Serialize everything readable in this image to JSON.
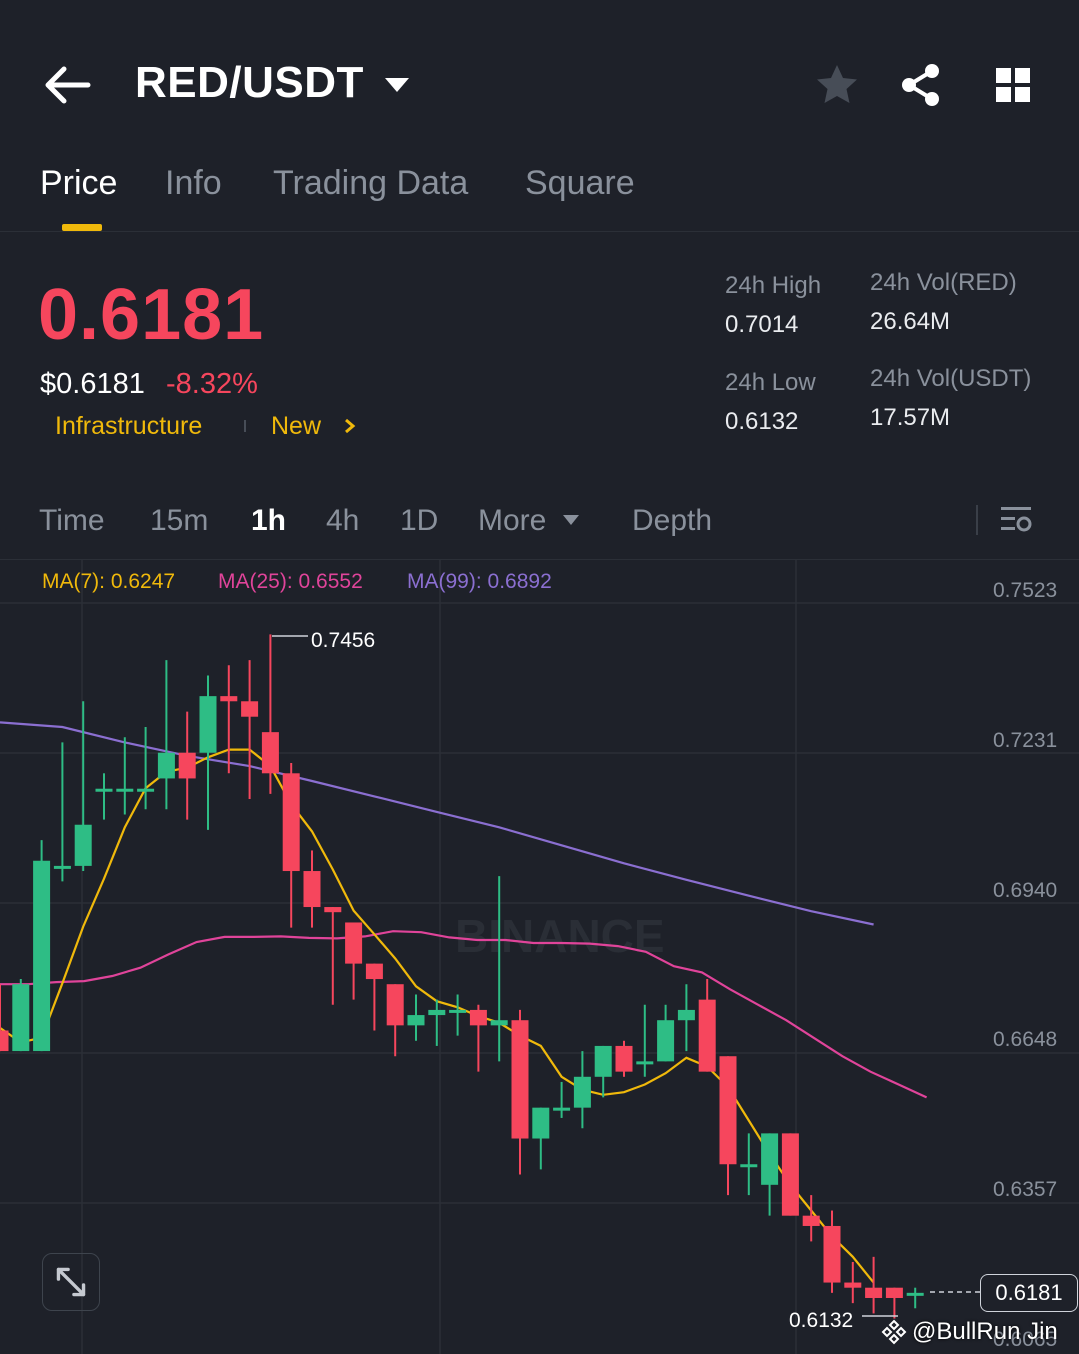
{
  "header": {
    "pair": "RED/USDT",
    "icons": [
      "back-arrow-icon",
      "dropdown-caret-icon",
      "star-icon",
      "share-icon",
      "grid-menu-icon"
    ]
  },
  "tabs": [
    {
      "label": "Price",
      "active": true
    },
    {
      "label": "Info",
      "active": false
    },
    {
      "label": "Trading Data",
      "active": false
    },
    {
      "label": "Square",
      "active": false
    }
  ],
  "price": {
    "last": "0.6181",
    "usd": "$0.6181",
    "change_pct": "-8.32%",
    "tags": [
      "Infrastructure",
      "New"
    ]
  },
  "stats": {
    "high_label": "24h High",
    "high": "0.7014",
    "low_label": "24h Low",
    "low": "0.6132",
    "vol_base_label": "24h Vol(RED)",
    "vol_base": "26.64M",
    "vol_quote_label": "24h Vol(USDT)",
    "vol_quote": "17.57M"
  },
  "intervals": {
    "items": [
      "Time",
      "15m",
      "1h",
      "4h",
      "1D",
      "More",
      "Depth"
    ],
    "active": "1h"
  },
  "ma_legend": {
    "ma7": "MA(7): 0.6247",
    "ma25": "MA(25): 0.6552",
    "ma99": "MA(99): 0.6892"
  },
  "colors": {
    "up": "#2ebd85",
    "down": "#f6465d",
    "accent": "#f0b90b",
    "ma7": "#f0b90b",
    "ma25": "#e0449a",
    "ma99": "#8b6fd1"
  },
  "chart_data": {
    "type": "candlestick",
    "interval": "1h",
    "y_ticks": [
      "0.7523",
      "0.7231",
      "0.6940",
      "0.6648",
      "0.6357",
      "0.6065"
    ],
    "ylim": [
      0.6065,
      0.7523
    ],
    "high_marker": "0.7456",
    "low_marker": "0.6132",
    "last_price": "0.6181",
    "watermark": "BINANCE",
    "candles": [
      {
        "o": 0.669,
        "h": 0.678,
        "l": 0.665,
        "c": 0.665
      },
      {
        "o": 0.665,
        "h": 0.679,
        "l": 0.665,
        "c": 0.678
      },
      {
        "o": 0.665,
        "h": 0.706,
        "l": 0.665,
        "c": 0.702
      },
      {
        "o": 0.701,
        "h": 0.725,
        "l": 0.698,
        "c": 0.701
      },
      {
        "o": 0.701,
        "h": 0.733,
        "l": 0.7,
        "c": 0.709
      },
      {
        "o": 0.716,
        "h": 0.719,
        "l": 0.71,
        "c": 0.716
      },
      {
        "o": 0.716,
        "h": 0.726,
        "l": 0.711,
        "c": 0.716
      },
      {
        "o": 0.716,
        "h": 0.728,
        "l": 0.712,
        "c": 0.716
      },
      {
        "o": 0.718,
        "h": 0.741,
        "l": 0.712,
        "c": 0.723
      },
      {
        "o": 0.723,
        "h": 0.731,
        "l": 0.71,
        "c": 0.718
      },
      {
        "o": 0.723,
        "h": 0.738,
        "l": 0.708,
        "c": 0.734
      },
      {
        "o": 0.734,
        "h": 0.74,
        "l": 0.719,
        "c": 0.733
      },
      {
        "o": 0.733,
        "h": 0.741,
        "l": 0.714,
        "c": 0.73
      },
      {
        "o": 0.727,
        "h": 0.746,
        "l": 0.715,
        "c": 0.719
      },
      {
        "o": 0.719,
        "h": 0.721,
        "l": 0.689,
        "c": 0.7
      },
      {
        "o": 0.7,
        "h": 0.704,
        "l": 0.689,
        "c": 0.693
      },
      {
        "o": 0.693,
        "h": 0.693,
        "l": 0.674,
        "c": 0.692
      },
      {
        "o": 0.69,
        "h": 0.69,
        "l": 0.675,
        "c": 0.682
      },
      {
        "o": 0.682,
        "h": 0.682,
        "l": 0.669,
        "c": 0.679
      },
      {
        "o": 0.678,
        "h": 0.678,
        "l": 0.664,
        "c": 0.67
      },
      {
        "o": 0.67,
        "h": 0.676,
        "l": 0.667,
        "c": 0.672
      },
      {
        "o": 0.672,
        "h": 0.675,
        "l": 0.666,
        "c": 0.673
      },
      {
        "o": 0.673,
        "h": 0.676,
        "l": 0.668,
        "c": 0.673
      },
      {
        "o": 0.673,
        "h": 0.674,
        "l": 0.661,
        "c": 0.67
      },
      {
        "o": 0.67,
        "h": 0.699,
        "l": 0.663,
        "c": 0.671
      },
      {
        "o": 0.671,
        "h": 0.673,
        "l": 0.641,
        "c": 0.648
      },
      {
        "o": 0.648,
        "h": 0.654,
        "l": 0.642,
        "c": 0.654
      },
      {
        "o": 0.654,
        "h": 0.659,
        "l": 0.652,
        "c": 0.654
      },
      {
        "o": 0.654,
        "h": 0.665,
        "l": 0.65,
        "c": 0.66
      },
      {
        "o": 0.66,
        "h": 0.666,
        "l": 0.656,
        "c": 0.666
      },
      {
        "o": 0.666,
        "h": 0.667,
        "l": 0.66,
        "c": 0.661
      },
      {
        "o": 0.663,
        "h": 0.674,
        "l": 0.66,
        "c": 0.663
      },
      {
        "o": 0.663,
        "h": 0.674,
        "l": 0.663,
        "c": 0.671
      },
      {
        "o": 0.671,
        "h": 0.678,
        "l": 0.665,
        "c": 0.673
      },
      {
        "o": 0.675,
        "h": 0.679,
        "l": 0.661,
        "c": 0.661
      },
      {
        "o": 0.664,
        "h": 0.664,
        "l": 0.637,
        "c": 0.643
      },
      {
        "o": 0.643,
        "h": 0.649,
        "l": 0.637,
        "c": 0.643
      },
      {
        "o": 0.639,
        "h": 0.649,
        "l": 0.633,
        "c": 0.649
      },
      {
        "o": 0.649,
        "h": 0.649,
        "l": 0.633,
        "c": 0.633
      },
      {
        "o": 0.633,
        "h": 0.637,
        "l": 0.628,
        "c": 0.631
      },
      {
        "o": 0.631,
        "h": 0.634,
        "l": 0.618,
        "c": 0.62
      },
      {
        "o": 0.62,
        "h": 0.624,
        "l": 0.616,
        "c": 0.619
      },
      {
        "o": 0.619,
        "h": 0.625,
        "l": 0.614,
        "c": 0.617
      },
      {
        "o": 0.619,
        "h": 0.619,
        "l": 0.613,
        "c": 0.617
      },
      {
        "o": 0.618,
        "h": 0.619,
        "l": 0.615,
        "c": 0.618
      }
    ],
    "ma7_points": [
      0.6695,
      0.6667,
      0.6676,
      0.6782,
      0.6892,
      0.6985,
      0.7085,
      0.7161,
      0.7193,
      0.7201,
      0.7221,
      0.7236,
      0.7236,
      0.7204,
      0.713,
      0.7077,
      0.7003,
      0.6923,
      0.6877,
      0.683,
      0.6776,
      0.6747,
      0.6735,
      0.6718,
      0.6705,
      0.668,
      0.666,
      0.66,
      0.6575,
      0.6565,
      0.657,
      0.6585,
      0.6607,
      0.6637,
      0.662,
      0.658,
      0.6515,
      0.645,
      0.639,
      0.634,
      0.629,
      0.625,
      0.62
    ],
    "ma25_points": [
      0.678,
      0.678,
      0.6784,
      0.6786,
      0.6796,
      0.6812,
      0.6838,
      0.6862,
      0.6872,
      0.6872,
      0.6873,
      0.687,
      0.6869,
      0.6873,
      0.6883,
      0.6881,
      0.6871,
      0.6866,
      0.6866,
      0.686,
      0.686,
      0.6859,
      0.6854,
      0.6843,
      0.6815,
      0.6803,
      0.677,
      0.674,
      0.671,
      0.6675,
      0.664,
      0.661,
      0.6585,
      0.656
    ],
    "ma99_points": [
      0.7289,
      0.728,
      0.725,
      0.7224,
      0.7204,
      0.7175,
      0.7145,
      0.7115,
      0.7085,
      0.705,
      0.7015,
      0.6983,
      0.6952,
      0.6922,
      0.6896
    ]
  },
  "watermark_user": "@BullRun Jin"
}
